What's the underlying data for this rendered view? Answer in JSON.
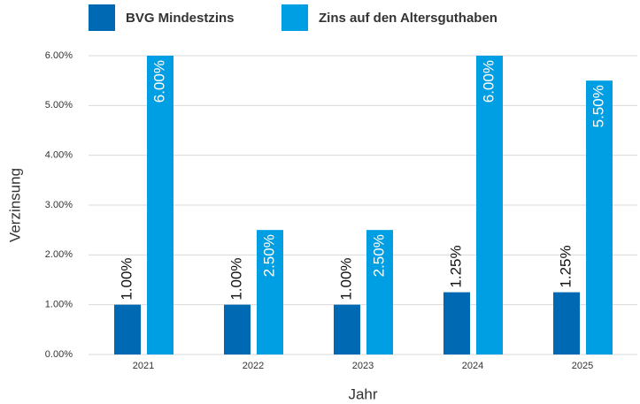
{
  "chart_data": {
    "type": "bar",
    "xlabel": "Jahr",
    "ylabel": "Verzinsung",
    "categories": [
      "2021",
      "2022",
      "2023",
      "2024",
      "2025"
    ],
    "series": [
      {
        "name": "BVG Mindestzins",
        "color": "#0069b4",
        "values": [
          1,
          1,
          1,
          1.25,
          1.25
        ],
        "value_labels": [
          "1.00%",
          "1.00%",
          "1.00%",
          "1.25%",
          "1.25%"
        ]
      },
      {
        "name": "Zins auf den Altersguthaben",
        "color": "#009ee3",
        "values": [
          6,
          2.5,
          2.5,
          6,
          5.5
        ],
        "value_labels": [
          "6.00%",
          "2.50%",
          "2.50%",
          "6.00%",
          "5.50%"
        ]
      }
    ],
    "ylim": [
      0,
      6
    ],
    "yticks": [
      {
        "value": 0,
        "label": "0.00%"
      },
      {
        "value": 1,
        "label": "1.00%"
      },
      {
        "value": 2,
        "label": "2.00%"
      },
      {
        "value": 3,
        "label": "3.00%"
      },
      {
        "value": 4,
        "label": "4.00%"
      },
      {
        "value": 5,
        "label": "5.00%"
      },
      {
        "value": 6,
        "label": "6.00%"
      }
    ],
    "grid": true
  }
}
